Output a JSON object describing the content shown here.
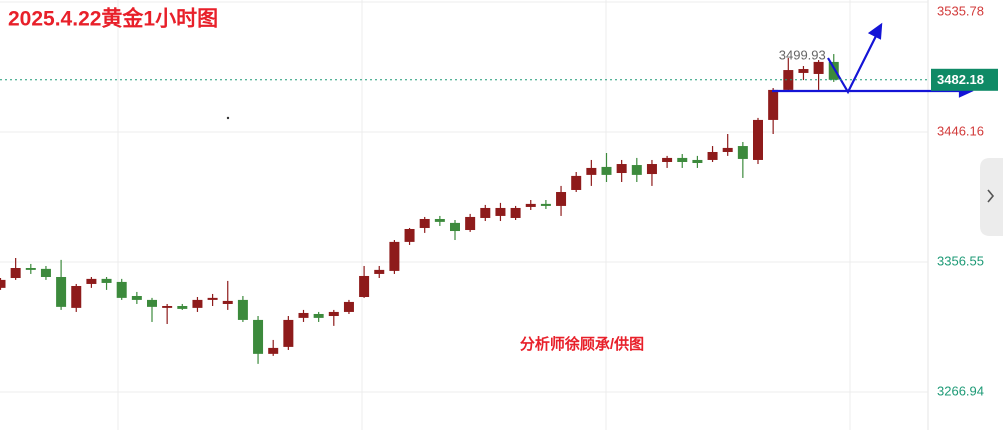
{
  "chart_data": {
    "type": "candlestick",
    "title": "2025.4.22黄金1小时图",
    "watermark": "分析师徐顾承/供图",
    "up_color": "#8e1b1b",
    "down_color": "#3c8a3c",
    "open": [
      3338.7,
      3345.5,
      3352.4,
      3351.8,
      3346.2,
      3324.9,
      3341.4,
      3344.9,
      3342.8,
      3333.1,
      3330.4,
      3324.9,
      3326.2,
      3324.9,
      3330.4,
      3327.6,
      3330.4,
      3316.6,
      3293.2,
      3298.0,
      3318.0,
      3320.7,
      3319.3,
      3322.1,
      3332.4,
      3348.3,
      3350.4,
      3370.4,
      3380.0,
      3386.2,
      3383.5,
      3378.6,
      3386.9,
      3388.3,
      3386.9,
      3394.5,
      3396.6,
      3395.2,
      3406.2,
      3416.6,
      3422.1,
      3417.9,
      3423.4,
      3417.2,
      3425.5,
      3428.3,
      3426.9,
      3426.9,
      3432.4,
      3436.5,
      3426.9,
      3454.5,
      3475.2,
      3486.9,
      3486.2,
      3494.5
    ],
    "high": [
      3345.5,
      3359.3,
      3355.2,
      3353.8,
      3358.0,
      3341.4,
      3346.2,
      3346.2,
      3344.9,
      3335.9,
      3331.8,
      3327.6,
      3327.6,
      3332.4,
      3334.5,
      3343.5,
      3333.1,
      3319.3,
      3302.8,
      3319.3,
      3323.5,
      3322.1,
      3323.5,
      3330.4,
      3353.8,
      3353.8,
      3371.7,
      3380.0,
      3387.6,
      3388.3,
      3385.5,
      3389.7,
      3395.9,
      3397.3,
      3395.2,
      3399.3,
      3399.3,
      3409.0,
      3418.6,
      3426.9,
      3431.7,
      3426.9,
      3428.3,
      3426.9,
      3429.7,
      3431.0,
      3429.7,
      3436.5,
      3444.8,
      3439.3,
      3455.9,
      3476.5,
      3497.2,
      3491.7,
      3495.8,
      3499.93
    ],
    "low": [
      3337.3,
      3344.2,
      3348.3,
      3344.2,
      3323.5,
      3322.1,
      3338.7,
      3337.3,
      3330.4,
      3327.6,
      3315.2,
      3313.8,
      3323.5,
      3322.1,
      3326.2,
      3323.5,
      3315.2,
      3286.3,
      3291.8,
      3295.9,
      3315.2,
      3315.2,
      3312.5,
      3320.7,
      3331.8,
      3345.5,
      3348.3,
      3368.3,
      3376.6,
      3381.4,
      3371.7,
      3377.3,
      3384.8,
      3384.8,
      3385.5,
      3392.4,
      3393.1,
      3388.3,
      3404.8,
      3409.0,
      3411.7,
      3411.7,
      3411.7,
      3409.0,
      3421.4,
      3421.4,
      3421.4,
      3425.5,
      3429.7,
      3414.5,
      3424.1,
      3444.8,
      3473.8,
      3482.0,
      3475.2,
      3480.7
    ],
    "close": [
      3344.2,
      3352.4,
      3351.1,
      3346.2,
      3325.6,
      3340.0,
      3344.9,
      3342.1,
      3331.8,
      3330.4,
      3325.6,
      3326.2,
      3324.2,
      3330.4,
      3331.8,
      3329.7,
      3316.6,
      3293.2,
      3297.3,
      3316.6,
      3321.4,
      3318.0,
      3322.1,
      3329.0,
      3346.9,
      3351.1,
      3370.4,
      3379.3,
      3386.2,
      3384.2,
      3377.9,
      3387.6,
      3393.8,
      3393.8,
      3393.8,
      3396.6,
      3395.2,
      3404.8,
      3415.9,
      3421.4,
      3416.6,
      3424.1,
      3416.6,
      3424.1,
      3428.3,
      3425.5,
      3424.8,
      3432.4,
      3435.2,
      3427.6,
      3454.5,
      3475.2,
      3488.9,
      3489.6,
      3494.5,
      3482.18
    ],
    "high_label": "3499.93",
    "current_price": {
      "value": 3482.18,
      "label": "3482.18"
    },
    "ylim": [
      3240.7,
      3537.2
    ],
    "yticks": [
      3535.78,
      3446.16,
      3356.55,
      3266.94
    ],
    "ytick_colors": [
      "#d23a3a",
      "#d23a3a",
      "#1d9a76",
      "#1d9a76"
    ],
    "grid": true
  }
}
